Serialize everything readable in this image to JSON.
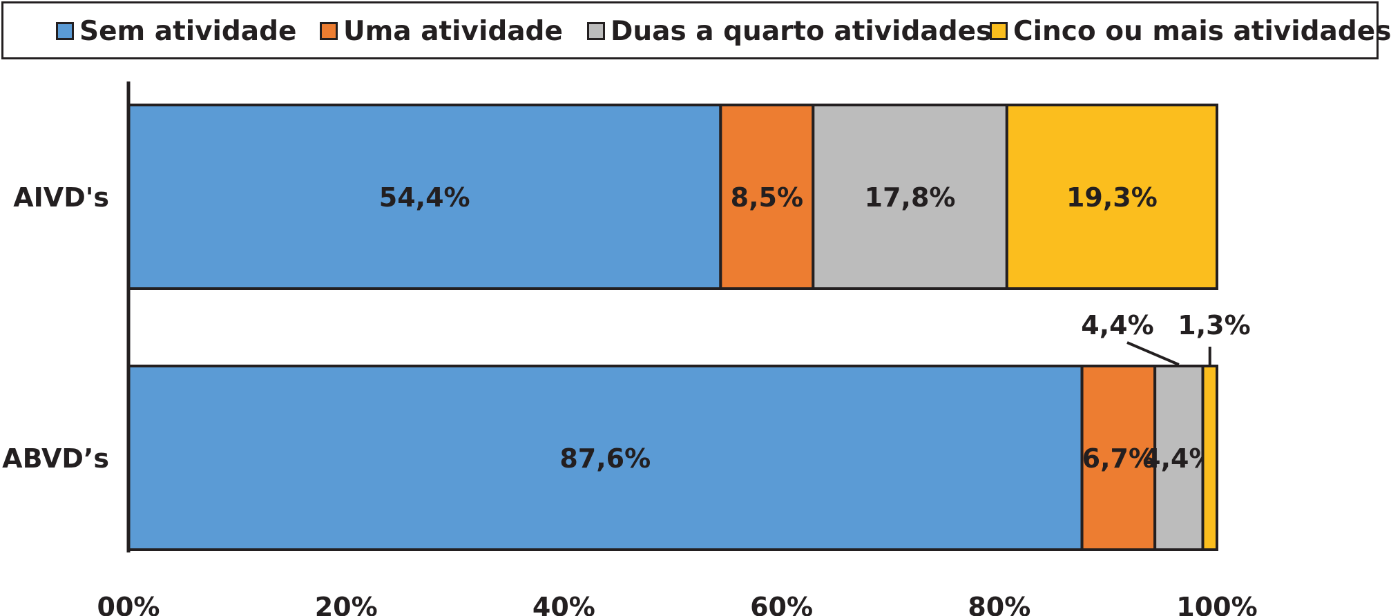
{
  "chart_data": {
    "type": "bar",
    "orientation": "horizontal",
    "stacked": true,
    "categories": [
      "AIVD's",
      "ABVD’s"
    ],
    "series": [
      {
        "name": "Sem atividade",
        "color": "#5b9bd5",
        "values": [
          54.4,
          87.6
        ],
        "labels": [
          "54,4%",
          "87,6%"
        ]
      },
      {
        "name": "Uma atividade",
        "color": "#ed7d31",
        "values": [
          8.5,
          6.7
        ],
        "labels": [
          "8,5%",
          "6,7%"
        ]
      },
      {
        "name": "Duas a quarto atividades",
        "color": "#bcbcbc",
        "values": [
          17.8,
          4.4
        ],
        "labels": [
          "17,8%",
          "4,4%"
        ]
      },
      {
        "name": "Cinco ou mais atividades",
        "color": "#fbbe1e",
        "values": [
          19.3,
          1.3
        ],
        "labels": [
          "19,3%",
          "1,3%"
        ]
      }
    ],
    "xlim": [
      0,
      100
    ],
    "xticks": [
      "00%",
      "20%",
      "40%",
      "60%",
      "80%",
      "100%"
    ],
    "legend_position": "top",
    "grid": false
  }
}
